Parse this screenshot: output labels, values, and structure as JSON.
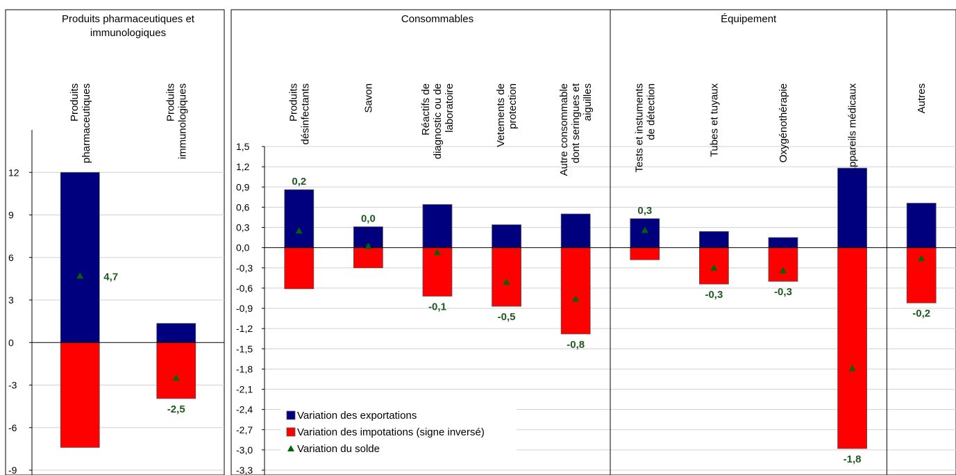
{
  "colors": {
    "exports": "#00007f",
    "imports": "#ff0000",
    "balance": "#006400",
    "grid": "#d0d0d0",
    "frame": "#000000",
    "label": "#1e5a1e"
  },
  "legend": {
    "items": [
      {
        "label": "Variation des exportations",
        "color": "#00007f",
        "marker": "square"
      },
      {
        "label": "Variation des impotations (signe inversé)",
        "color": "#ff0000",
        "marker": "square"
      },
      {
        "label": "Variation du solde",
        "color": "#006400",
        "marker": "triangle"
      }
    ]
  },
  "chart_data": [
    {
      "type": "bar",
      "panel": "left",
      "groups": [
        {
          "name": "Produits pharmaceutiques et immunologiques",
          "categories": [
            "Produits pharmaceutiques",
            "Produits immunologiques"
          ]
        }
      ],
      "categories": [
        "Produits pharmaceutiques",
        "Produits immunologiques"
      ],
      "series": [
        {
          "name": "Variation des exportations",
          "values": [
            12.0,
            1.35
          ]
        },
        {
          "name": "Variation des impotations (signe inversé)",
          "values": [
            -7.4,
            -3.95
          ]
        },
        {
          "name": "Variation du solde",
          "values": [
            4.7,
            -2.5
          ]
        }
      ],
      "data_labels": [
        "4,7",
        "-2,5"
      ],
      "ylim": [
        -9,
        15
      ],
      "yticks": [
        12,
        9,
        6,
        3,
        0,
        -3,
        -6,
        -9
      ],
      "ytick_labels": [
        "12",
        "9",
        "6",
        "3",
        "0",
        "-3",
        "-6",
        "-9"
      ],
      "grid": true,
      "legend_position": "none"
    },
    {
      "type": "bar",
      "panel": "right",
      "groups": [
        {
          "name": "Consommables",
          "categories": [
            "Produits désinfectants",
            "Savon",
            "Réactifs de diagnostic ou de laboratoire",
            "Vetements de protection",
            "Autre consommable dont seringues et aiguilles"
          ]
        },
        {
          "name": "Équipement",
          "categories": [
            "Tests et instuments de détection",
            "Tubes et tuyaux",
            "Oxygénothérapie",
            "Appareils médicaux"
          ]
        },
        {
          "name": "",
          "categories": [
            "Autres"
          ]
        }
      ],
      "categories": [
        "Produits désinfectants",
        "Savon",
        "Réactifs de diagnostic ou de laboratoire",
        "Vetements de protection",
        "Autre consommable dont seringues et aiguilles",
        "Tests et instuments de détection",
        "Tubes et tuyaux",
        "Oxygénothérapie",
        "Appareils médicaux",
        "Autres"
      ],
      "category_label_lines": [
        [
          "Produits",
          "désinfectants"
        ],
        [
          "Savon"
        ],
        [
          "Réactifs de",
          "diagnostic ou de",
          "laboratoire"
        ],
        [
          "Vetements de",
          "protection"
        ],
        [
          "Autre consommable",
          "dont seringues et",
          "aiguilles"
        ],
        [
          "Tests et instuments",
          "de détection"
        ],
        [
          "Tubes et tuyaux"
        ],
        [
          "Oxygénothérapie"
        ],
        [
          "Appareils médicaux"
        ],
        [
          "Autres"
        ]
      ],
      "series": [
        {
          "name": "Variation des exportations",
          "values": [
            0.86,
            0.31,
            0.64,
            0.34,
            0.5,
            0.43,
            0.24,
            0.15,
            1.18,
            0.66
          ]
        },
        {
          "name": "Variation des impotations (signe inversé)",
          "values": [
            -0.61,
            -0.3,
            -0.72,
            -0.87,
            -1.28,
            -0.18,
            -0.54,
            -0.5,
            -2.98,
            -0.82
          ]
        },
        {
          "name": "Variation du solde",
          "values": [
            0.25,
            0.02,
            -0.07,
            -0.51,
            -0.76,
            0.26,
            -0.3,
            -0.34,
            -1.79,
            -0.16
          ]
        }
      ],
      "data_labels": [
        "0,2",
        "0,0",
        "-0,1",
        "-0,5",
        "-0,8",
        "0,3",
        "-0,3",
        "-0,3",
        "-1,8",
        "-0,2"
      ],
      "label_side": [
        "top",
        "top",
        "bottom",
        "bottom",
        "bottom",
        "top",
        "bottom",
        "bottom",
        "bottom",
        "bottom"
      ],
      "ylim": [
        -3.3,
        1.5
      ],
      "yticks": [
        1.5,
        1.2,
        0.9,
        0.6,
        0.3,
        0.0,
        -0.3,
        -0.6,
        -0.9,
        -1.2,
        -1.5,
        -1.8,
        -2.1,
        -2.4,
        -2.7,
        -3.0,
        -3.3
      ],
      "ytick_labels": [
        "1,5",
        "1,2",
        "0,9",
        "0,6",
        "0,3",
        "0,0",
        "-0,3",
        "-0,6",
        "-0,9",
        "-1,2",
        "-1,5",
        "-1,8",
        "-2,1",
        "-2,4",
        "-2,7",
        "-3,0",
        "-3,3"
      ],
      "grid": true,
      "legend_position": "bottom-left"
    }
  ]
}
